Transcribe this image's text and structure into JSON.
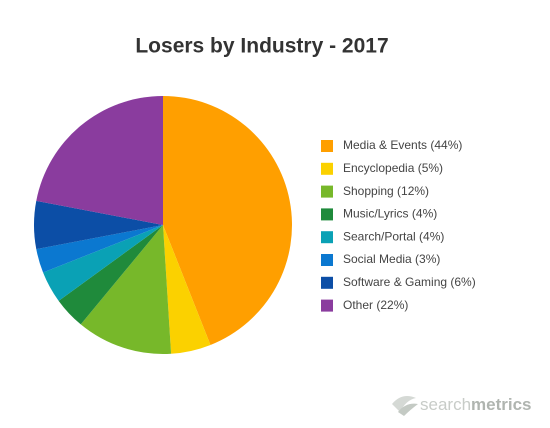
{
  "chart_data": {
    "type": "pie",
    "title": "Losers by Industry - 2017",
    "categories": [
      "Media & Events (44%)",
      "Encyclopedia (5%)",
      "Shopping (12%)",
      "Music/Lyrics (4%)",
      "Search/Portal (4%)",
      "Social Media (3%)",
      "Software & Gaming (6%)",
      "Other (22%)"
    ],
    "values": [
      44,
      5,
      12,
      4,
      4,
      3,
      6,
      22
    ],
    "colors": [
      "#ff9f00",
      "#fbd100",
      "#77b82a",
      "#1f8a3b",
      "#0aa1b5",
      "#0b78d0",
      "#0c4ea6",
      "#8a3c9e"
    ],
    "legend": "right",
    "logo": [
      "search",
      "metrics"
    ]
  }
}
